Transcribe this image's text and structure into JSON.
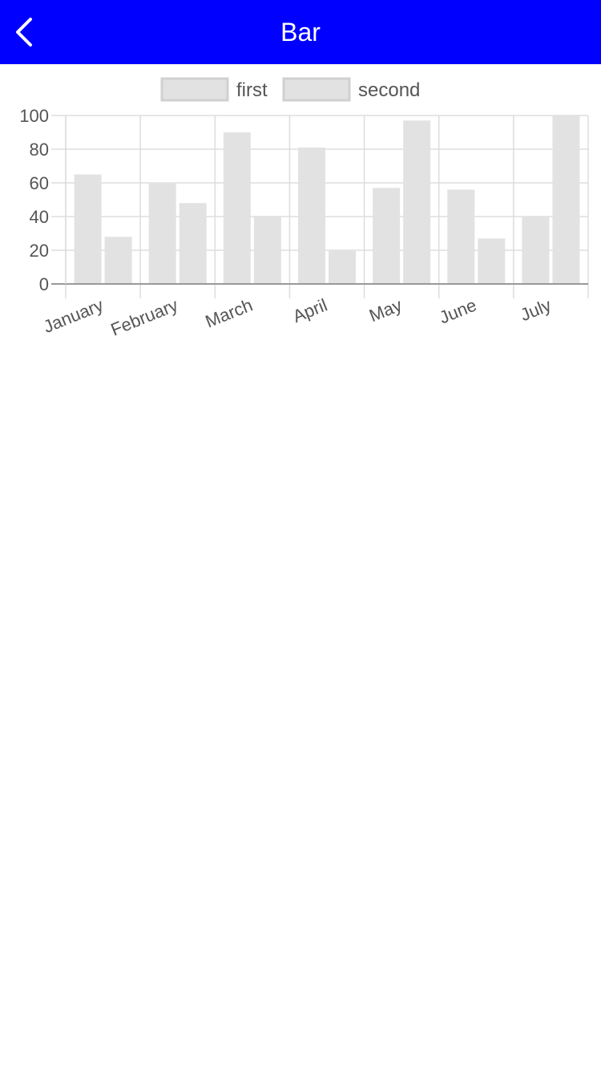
{
  "header": {
    "title": "Bar",
    "back_icon": "chevron-left-icon"
  },
  "colors": {
    "header_bg": "#0000ff",
    "header_text": "#ffffff",
    "bar_fill": "#e2e2e2",
    "legend_stroke": "#d0d0d0",
    "grid": "#dddddd",
    "axis": "#999999",
    "label_text": "#555555"
  },
  "chart_data": {
    "type": "bar",
    "categories": [
      "January",
      "February",
      "March",
      "April",
      "May",
      "June",
      "July"
    ],
    "series": [
      {
        "name": "first",
        "values": [
          65,
          60,
          90,
          81,
          57,
          56,
          40
        ]
      },
      {
        "name": "second",
        "values": [
          28,
          48,
          40,
          20,
          97,
          27,
          100
        ]
      }
    ],
    "ylim": [
      0,
      100
    ],
    "yticks": [
      0,
      20,
      40,
      60,
      80,
      100
    ],
    "grid": true,
    "legend_position": "top-center",
    "xlabel": "",
    "ylabel": ""
  }
}
